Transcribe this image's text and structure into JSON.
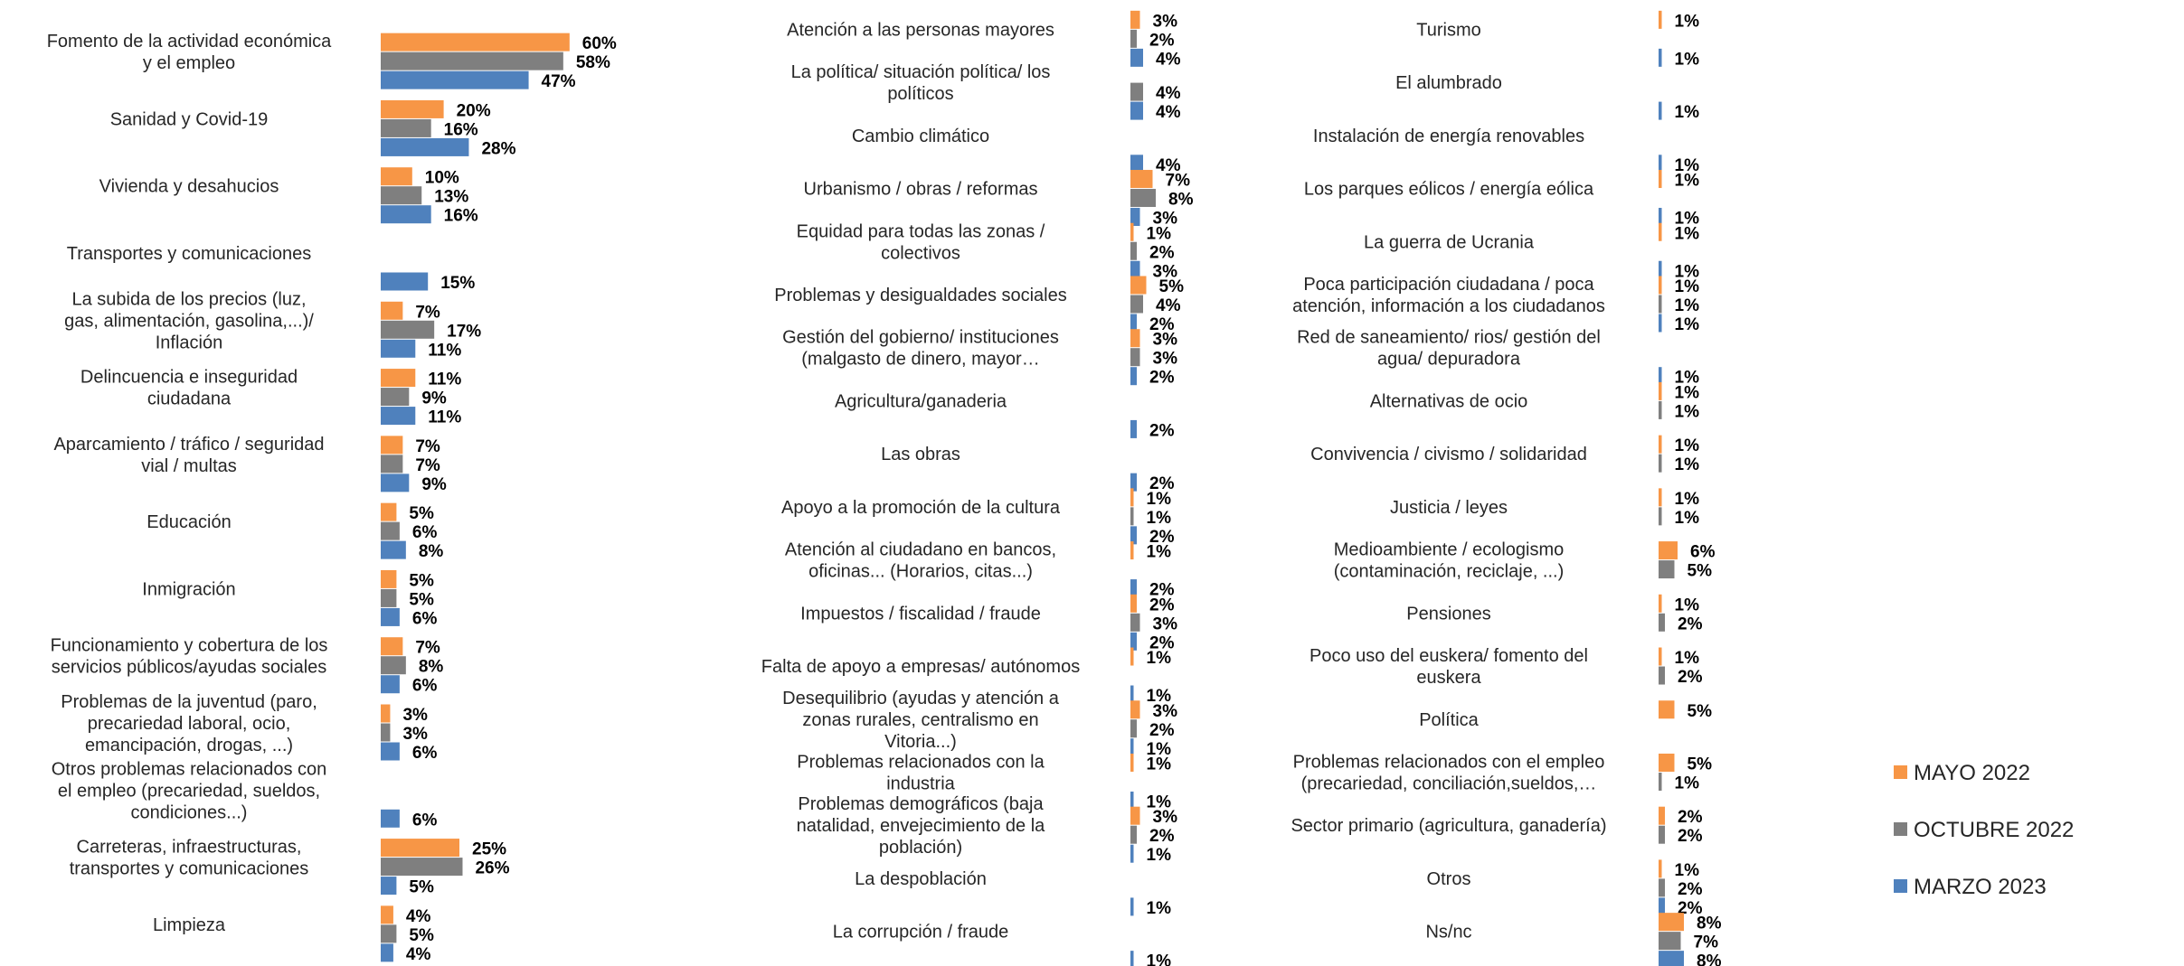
{
  "chart_data": {
    "type": "bar",
    "orientation": "horizontal",
    "unit": "%",
    "colors": {
      "MAYO 2022": "#f79646",
      "OCTUBRE 2022": "#7f7f7f",
      "MARZO 2023": "#4f81bd"
    },
    "legend": [
      {
        "name": "MAYO 2022",
        "color": "#f79646"
      },
      {
        "name": "OCTUBRE 2022",
        "color": "#7f7f7f"
      },
      {
        "name": "MARZO 2023",
        "color": "#4f81bd"
      }
    ],
    "legend_position": "right",
    "panels": [
      {
        "categories": [
          {
            "label": "Fomento de la actividad económica y el empleo",
            "values": [
              60,
              58,
              47
            ]
          },
          {
            "label": "Sanidad y Covid-19",
            "values": [
              20,
              16,
              28
            ]
          },
          {
            "label": "Vivienda y desahucios",
            "values": [
              10,
              13,
              16
            ]
          },
          {
            "label": "Transportes y comunicaciones",
            "values": [
              null,
              null,
              15
            ]
          },
          {
            "label": "La subida de los precios (luz, gas, alimentación, gasolina,...)/ Inflación",
            "values": [
              7,
              17,
              11
            ]
          },
          {
            "label": "Delincuencia e inseguridad ciudadana",
            "values": [
              11,
              9,
              11
            ]
          },
          {
            "label": "Aparcamiento / tráfico / seguridad vial / multas",
            "values": [
              7,
              7,
              9
            ]
          },
          {
            "label": "Educación",
            "values": [
              5,
              6,
              8
            ]
          },
          {
            "label": "Inmigración",
            "values": [
              5,
              5,
              6
            ]
          },
          {
            "label": "Funcionamiento y cobertura de los servicios públicos/ayudas sociales",
            "values": [
              7,
              8,
              6
            ]
          },
          {
            "label": "Problemas de la juventud (paro, precariedad laboral, ocio, emancipación, drogas, ...)",
            "values": [
              3,
              3,
              6
            ]
          },
          {
            "label": "Otros problemas relacionados con el empleo (precariedad, sueldos, condiciones...)",
            "values": [
              null,
              null,
              6
            ]
          },
          {
            "label": "Carreteras, infraestructuras, transportes y comunicaciones",
            "values": [
              25,
              26,
              5
            ]
          },
          {
            "label": "Limpieza",
            "values": [
              4,
              5,
              4
            ]
          }
        ]
      },
      {
        "categories": [
          {
            "label": "Atención a las personas mayores",
            "values": [
              3,
              2,
              4
            ]
          },
          {
            "label": "La política/ situación política/ los políticos",
            "values": [
              null,
              4,
              4
            ]
          },
          {
            "label": "Cambio climático",
            "values": [
              null,
              null,
              4
            ]
          },
          {
            "label": "Urbanismo / obras / reformas",
            "values": [
              7,
              8,
              3
            ]
          },
          {
            "label": "Equidad para todas las zonas / colectivos",
            "values": [
              1,
              2,
              3
            ]
          },
          {
            "label": "Problemas y desigualdades sociales",
            "values": [
              5,
              4,
              2
            ]
          },
          {
            "label": "Gestión del gobierno/ instituciones (malgasto de dinero, mayor…",
            "values": [
              3,
              3,
              2
            ]
          },
          {
            "label": "Agricultura/ganaderia",
            "values": [
              null,
              null,
              2
            ]
          },
          {
            "label": "Las obras",
            "values": [
              null,
              null,
              2
            ]
          },
          {
            "label": "Apoyo a la promoción de la cultura",
            "values": [
              1,
              1,
              2
            ]
          },
          {
            "label": "Atención al ciudadano en bancos, oficinas... (Horarios, citas...)",
            "values": [
              1,
              null,
              2
            ]
          },
          {
            "label": "Impuestos / fiscalidad / fraude",
            "values": [
              2,
              3,
              2
            ]
          },
          {
            "label": "Falta de apoyo a empresas/ autónomos",
            "values": [
              1,
              null,
              1
            ]
          },
          {
            "label": "Desequilibrio (ayudas y atención a zonas rurales, centralismo en Vitoria...)",
            "values": [
              3,
              2,
              1
            ]
          },
          {
            "label": "Problemas relacionados con la industria",
            "values": [
              1,
              null,
              1
            ]
          },
          {
            "label": "Problemas demográficos (baja natalidad, envejecimiento de la población)",
            "values": [
              3,
              2,
              1
            ]
          },
          {
            "label": "La despoblación",
            "values": [
              null,
              null,
              1
            ]
          },
          {
            "label": "La corrupción / fraude",
            "values": [
              null,
              null,
              1
            ]
          }
        ]
      },
      {
        "categories": [
          {
            "label": "Turismo",
            "values": [
              1,
              null,
              1
            ]
          },
          {
            "label": "El alumbrado",
            "values": [
              null,
              null,
              1
            ]
          },
          {
            "label": "Instalación de energía renovables",
            "values": [
              null,
              null,
              1
            ]
          },
          {
            "label": "Los parques eólicos / energía eólica",
            "values": [
              1,
              null,
              1
            ]
          },
          {
            "label": "La guerra de Ucrania",
            "values": [
              1,
              null,
              1
            ]
          },
          {
            "label": "Poca participación ciudadana / poca atención, información a los ciudadanos",
            "values": [
              1,
              1,
              1
            ]
          },
          {
            "label": "Red de saneamiento/ rios/ gestión del agua/ depuradora",
            "values": [
              null,
              null,
              1
            ]
          },
          {
            "label": "Alternativas de ocio",
            "values": [
              1,
              1,
              null
            ]
          },
          {
            "label": "Convivencia / civismo / solidaridad",
            "values": [
              1,
              1,
              null
            ]
          },
          {
            "label": "Justicia / leyes",
            "values": [
              1,
              1,
              null
            ]
          },
          {
            "label": "Medioambiente / ecologismo (contaminación, reciclaje, ...)",
            "values": [
              6,
              5,
              null
            ]
          },
          {
            "label": "Pensiones",
            "values": [
              1,
              2,
              null
            ]
          },
          {
            "label": "Poco uso del euskera/ fomento del euskera",
            "values": [
              1,
              2,
              null
            ]
          },
          {
            "label": "Política",
            "values": [
              5,
              null,
              null
            ]
          },
          {
            "label": "Problemas relacionados con el empleo (precariedad, conciliación,sueldos,…",
            "values": [
              5,
              1,
              null
            ]
          },
          {
            "label": "Sector primario (agricultura, ganadería)",
            "values": [
              2,
              2,
              null
            ]
          },
          {
            "label": "Otros",
            "values": [
              1,
              2,
              2
            ]
          },
          {
            "label": "Ns/nc",
            "values": [
              8,
              7,
              8
            ]
          }
        ]
      }
    ]
  }
}
